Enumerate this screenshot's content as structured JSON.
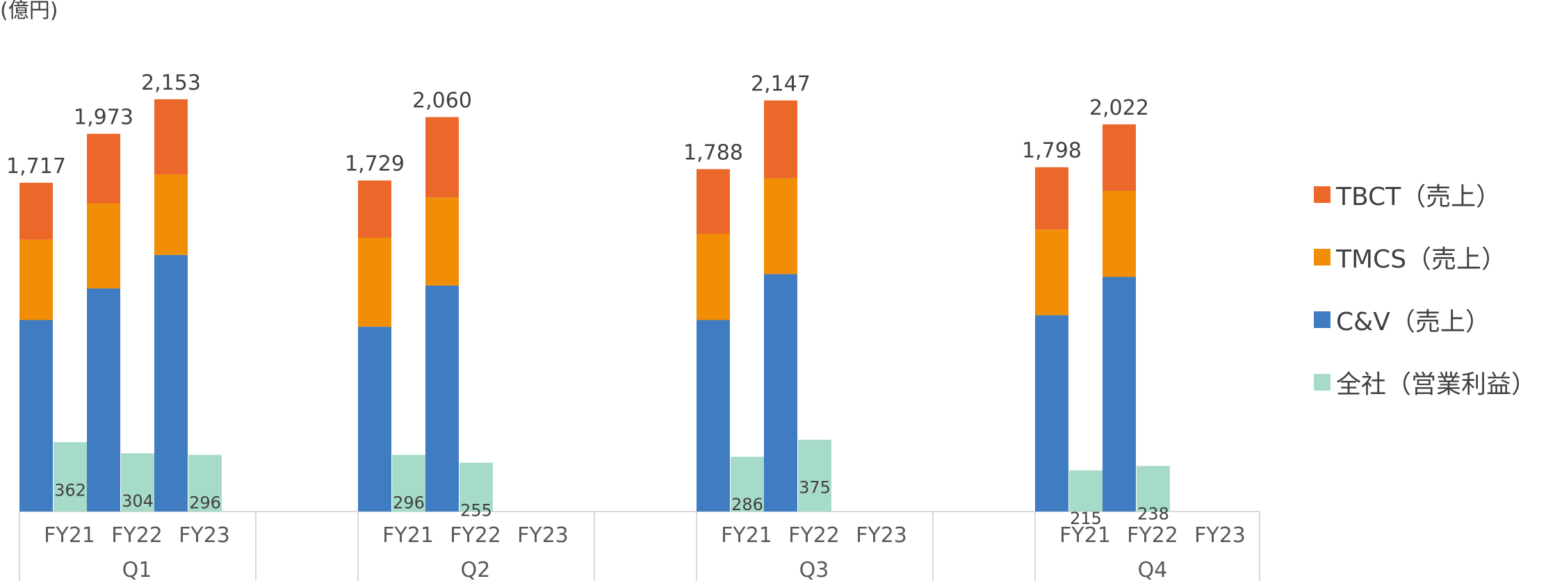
{
  "chart_data": {
    "type": "bar",
    "unit_label": "(億円)",
    "groups": [
      "Q1",
      "Q2",
      "Q3",
      "Q4"
    ],
    "fiscal_years": [
      "FY21",
      "FY22",
      "FY23"
    ],
    "colors": {
      "C&V": "#3f7cc2",
      "TMCS": "#f28e05",
      "TBCT": "#ec672a",
      "OP": "#a7dbc9"
    },
    "stack_series": [
      "C&V（売上）",
      "TMCS（売上）",
      "TBCT（売上）"
    ],
    "profit_series": "全社（営業利益）",
    "legend": [
      {
        "key": "TBCT",
        "label": "TBCT（売上）"
      },
      {
        "key": "TMCS",
        "label": "TMCS（売上）"
      },
      {
        "key": "C&V",
        "label": "C&V（売上）"
      },
      {
        "key": "OP",
        "label": "全社（営業利益）"
      }
    ],
    "data": [
      {
        "group": "Q1",
        "fy": "FY21",
        "cv": 1000,
        "tmcs": 420,
        "tbct": 297,
        "total": 1717,
        "op": 362
      },
      {
        "group": "Q1",
        "fy": "FY22",
        "cv": 1165,
        "tmcs": 445,
        "tbct": 363,
        "total": 1973,
        "op": 304
      },
      {
        "group": "Q1",
        "fy": "FY23",
        "cv": 1340,
        "tmcs": 420,
        "tbct": 393,
        "total": 2153,
        "op": 296
      },
      {
        "group": "Q2",
        "fy": "FY21",
        "cv": 965,
        "tmcs": 465,
        "tbct": 299,
        "total": 1729,
        "op": 296
      },
      {
        "group": "Q2",
        "fy": "FY22",
        "cv": 1180,
        "tmcs": 460,
        "tbct": 420,
        "total": 2060,
        "op": 255
      },
      {
        "group": "Q3",
        "fy": "FY21",
        "cv": 1000,
        "tmcs": 450,
        "tbct": 338,
        "total": 1788,
        "op": 286
      },
      {
        "group": "Q3",
        "fy": "FY22",
        "cv": 1240,
        "tmcs": 500,
        "tbct": 407,
        "total": 2147,
        "op": 375
      },
      {
        "group": "Q4",
        "fy": "FY21",
        "cv": 1025,
        "tmcs": 448,
        "tbct": 325,
        "total": 1798,
        "op": 215
      },
      {
        "group": "Q4",
        "fy": "FY22",
        "cv": 1225,
        "tmcs": 450,
        "tbct": 347,
        "total": 2022,
        "op": 238
      }
    ]
  }
}
